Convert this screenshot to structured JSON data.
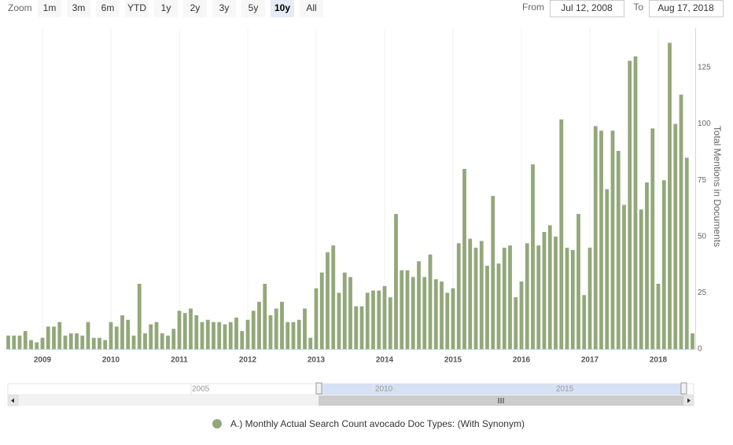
{
  "chart_data": {
    "type": "bar",
    "y_axis_label": "Total Mentions in Documents",
    "categories": [
      null,
      null,
      null,
      null,
      null,
      null,
      "2009",
      null,
      null,
      null,
      null,
      null,
      null,
      null,
      null,
      null,
      null,
      null,
      "2010",
      null,
      null,
      null,
      null,
      null,
      null,
      null,
      null,
      null,
      null,
      null,
      "2011",
      null,
      null,
      null,
      null,
      null,
      null,
      null,
      null,
      null,
      null,
      null,
      "2012",
      null,
      null,
      null,
      null,
      null,
      null,
      null,
      null,
      null,
      null,
      null,
      "2013",
      null,
      null,
      null,
      null,
      null,
      null,
      null,
      null,
      null,
      null,
      null,
      "2014",
      null,
      null,
      null,
      null,
      null,
      null,
      null,
      null,
      null,
      null,
      null,
      "2015",
      null,
      null,
      null,
      null,
      null,
      null,
      null,
      null,
      null,
      null,
      null,
      "2016",
      null,
      null,
      null,
      null,
      null,
      null,
      null,
      null,
      null,
      null,
      null,
      "2017",
      null,
      null,
      null,
      null,
      null,
      null,
      null,
      null,
      null,
      null,
      null,
      "2018",
      null,
      null,
      null,
      null,
      null,
      null
    ],
    "series": [
      {
        "name": "A.) Monthly Actual Search Count avocado Doc Types: (With Synonym)",
        "color": "#93a87a",
        "values": [
          6,
          6,
          6,
          8,
          4,
          3,
          5,
          10,
          10,
          12,
          6,
          7,
          7,
          6,
          12,
          5,
          5,
          4,
          12,
          10,
          15,
          13,
          6,
          29,
          7,
          11,
          12,
          7,
          6,
          9,
          17,
          16,
          18,
          15,
          12,
          13,
          12,
          12,
          11,
          12,
          14,
          8,
          13,
          17,
          21,
          29,
          15,
          18,
          21,
          12,
          12,
          13,
          18,
          5,
          27,
          34,
          43,
          46,
          25,
          34,
          32,
          19,
          19,
          25,
          26,
          26,
          28,
          23,
          60,
          35,
          35,
          32,
          39,
          32,
          42,
          31,
          30,
          25,
          27,
          47,
          80,
          49,
          45,
          48,
          37,
          68,
          38,
          45,
          46,
          23,
          30,
          47,
          82,
          46,
          52,
          55,
          50,
          102,
          45,
          44,
          60,
          24,
          45,
          99,
          97,
          71,
          97,
          88,
          64,
          128,
          130,
          62,
          74,
          98,
          29,
          75,
          136,
          100,
          113,
          85,
          7
        ]
      }
    ],
    "ylim": [
      0,
      140
    ],
    "yticks": [
      0,
      25,
      50,
      75,
      100,
      125
    ],
    "grid": false,
    "y_axis_side": "right"
  },
  "controls": {
    "zoom_label": "Zoom",
    "buttons": [
      "1m",
      "3m",
      "6m",
      "YTD",
      "1y",
      "2y",
      "3y",
      "5y",
      "10y",
      "All"
    ],
    "selected": "10y",
    "from_label": "From",
    "from_value": "Jul 12, 2008",
    "to_label": "To",
    "to_value": "Aug 17, 2018"
  },
  "navigator": {
    "labels": [
      "2005",
      "2010",
      "2015"
    ]
  }
}
